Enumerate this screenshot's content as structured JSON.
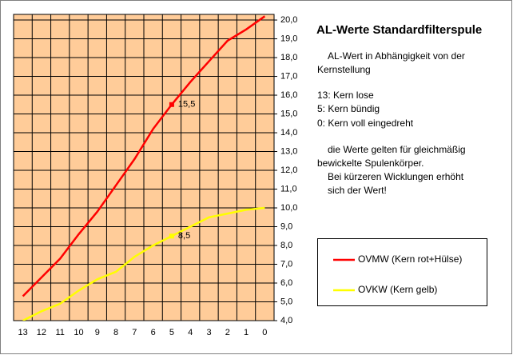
{
  "chart_data": {
    "type": "line",
    "title": "AL-Werte Standardfilterspule",
    "notes": [
      "AL-Wert in Abhängigkeit von der",
      "Kernstellung",
      "13:  Kern lose",
      "5:  Kern bündig",
      "0:  Kern voll eingedreht",
      "die Werte gelten für gleichmäßig",
      "bewickelte Spulenkörper.",
      "Bei kürzeren Wicklungen erhöht",
      "sich der Wert!"
    ],
    "categories": [
      "13",
      "12",
      "11",
      "10",
      "9",
      "8",
      "7",
      "6",
      "5",
      "4",
      "3",
      "2",
      "1",
      "0"
    ],
    "series": [
      {
        "name": "OVMW (Kern rot+Hülse)",
        "color": "#ff0000",
        "values": [
          5.3,
          6.3,
          7.3,
          8.6,
          9.8,
          11.2,
          12.6,
          14.2,
          15.5,
          16.7,
          17.8,
          18.9,
          19.5,
          20.2
        ],
        "value_labels": [
          null,
          null,
          null,
          null,
          null,
          null,
          null,
          null,
          "15,5",
          null,
          null,
          null,
          null,
          null
        ]
      },
      {
        "name": "OVKW (Kern gelb)",
        "color": "#ffff00",
        "values": [
          4.0,
          4.5,
          4.9,
          5.6,
          6.2,
          6.6,
          7.4,
          8.0,
          8.5,
          9.0,
          9.5,
          9.7,
          9.9,
          10.0
        ],
        "value_labels": [
          null,
          null,
          null,
          null,
          null,
          null,
          null,
          null,
          "8,5",
          null,
          null,
          null,
          null,
          null
        ]
      }
    ],
    "ylim": [
      4,
      20.3
    ],
    "yticks": [
      {
        "value": 4,
        "label": "4,0"
      },
      {
        "value": 5,
        "label": "5,0"
      },
      {
        "value": 6,
        "label": "6,0"
      },
      {
        "value": 7,
        "label": "7,0"
      },
      {
        "value": 8,
        "label": "8,0"
      },
      {
        "value": 9,
        "label": "9,0"
      },
      {
        "value": 10,
        "label": "10,0"
      },
      {
        "value": 11,
        "label": "11,0"
      },
      {
        "value": 12,
        "label": "12,0"
      },
      {
        "value": 13,
        "label": "13,0"
      },
      {
        "value": 14,
        "label": "14,0"
      },
      {
        "value": 15,
        "label": "15,0"
      },
      {
        "value": 16,
        "label": "16,0"
      },
      {
        "value": 17,
        "label": "17,0"
      },
      {
        "value": 18,
        "label": "18,0"
      },
      {
        "value": 19,
        "label": "19,0"
      },
      {
        "value": 20,
        "label": "20,0"
      }
    ],
    "grid": true,
    "plot_background": "#ffcc99",
    "legend": "right"
  }
}
